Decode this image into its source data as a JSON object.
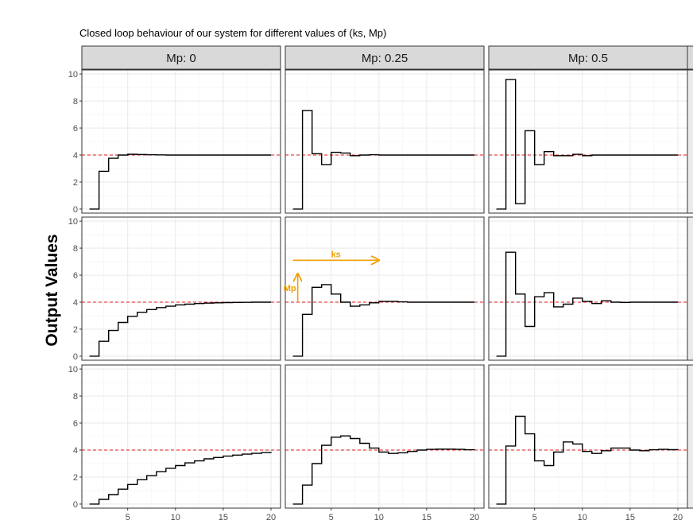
{
  "chart_data": {
    "type": "line",
    "title": "Closed loop behaviour of our system for different values of (ks, Mp)",
    "ylabel": "Output Values",
    "xlabel": "",
    "facet_columns": [
      "Mp: 0",
      "Mp: 0.25",
      "Mp: 0.5"
    ],
    "x_ticks": [
      5,
      10,
      15,
      20
    ],
    "y_ticks": [
      0,
      2,
      4,
      6,
      8,
      10
    ],
    "xlim": [
      0.2,
      21.0
    ],
    "ylim": [
      -0.3,
      10.3
    ],
    "reference_value": 4,
    "reference_color": "#e41a1c",
    "series_color": "#000000",
    "annotation_color": "#f2a100",
    "grid": true,
    "annotations": [
      {
        "text": "ks",
        "row": 1,
        "col": 1,
        "type": "horizontal-arrow",
        "x_from": 1,
        "x_to": 10,
        "y": 7.1
      },
      {
        "text": "Mp",
        "row": 1,
        "col": 1,
        "type": "vertical-arrow",
        "x": 1.5,
        "y_from": 4,
        "y_to": 6.1
      }
    ],
    "panels": [
      {
        "row": 0,
        "col": 0,
        "x": [
          1,
          2,
          3,
          4,
          5,
          6,
          7,
          8,
          9,
          10,
          11,
          12,
          13,
          14,
          15,
          16,
          17,
          18,
          19,
          20
        ],
        "values": [
          0,
          2.8,
          3.76,
          4.0,
          4.06,
          4.04,
          4.02,
          4.01,
          4.0,
          4.0,
          4.0,
          4.0,
          4.0,
          4.0,
          4.0,
          4.0,
          4.0,
          4.0,
          4.0,
          4.0
        ]
      },
      {
        "row": 0,
        "col": 1,
        "x": [
          1,
          2,
          3,
          4,
          5,
          6,
          7,
          8,
          9,
          10,
          11,
          12,
          13,
          14,
          15,
          16,
          17,
          18,
          19,
          20
        ],
        "values": [
          0,
          7.3,
          4.1,
          3.3,
          4.2,
          4.15,
          3.95,
          4.0,
          4.02,
          4.0,
          4.0,
          4.0,
          4.0,
          4.0,
          4.0,
          4.0,
          4.0,
          4.0,
          4.0,
          4.0
        ]
      },
      {
        "row": 0,
        "col": 2,
        "x": [
          1,
          2,
          3,
          4,
          5,
          6,
          7,
          8,
          9,
          10,
          11,
          12,
          13,
          14,
          15,
          16,
          17,
          18,
          19,
          20
        ],
        "values": [
          0,
          9.6,
          0.4,
          5.8,
          3.3,
          4.25,
          3.95,
          3.95,
          4.05,
          3.95,
          4.0,
          4.0,
          4.0,
          4.0,
          4.0,
          4.0,
          4.0,
          4.0,
          4.0,
          4.0
        ]
      },
      {
        "row": 1,
        "col": 0,
        "x": [
          1,
          2,
          3,
          4,
          5,
          6,
          7,
          8,
          9,
          10,
          11,
          12,
          13,
          14,
          15,
          16,
          17,
          18,
          19,
          20
        ],
        "values": [
          0,
          1.1,
          1.9,
          2.5,
          2.95,
          3.25,
          3.45,
          3.6,
          3.7,
          3.8,
          3.85,
          3.9,
          3.93,
          3.95,
          3.97,
          3.98,
          3.99,
          4.0,
          4.0,
          4.0
        ]
      },
      {
        "row": 1,
        "col": 1,
        "x": [
          1,
          2,
          3,
          4,
          5,
          6,
          7,
          8,
          9,
          10,
          11,
          12,
          13,
          14,
          15,
          16,
          17,
          18,
          19,
          20
        ],
        "values": [
          0,
          3.1,
          5.1,
          5.3,
          4.6,
          4.0,
          3.7,
          3.8,
          3.95,
          4.05,
          4.05,
          4.02,
          4.0,
          4.0,
          4.0,
          4.0,
          4.0,
          4.0,
          4.0,
          4.0
        ]
      },
      {
        "row": 1,
        "col": 2,
        "x": [
          1,
          2,
          3,
          4,
          5,
          6,
          7,
          8,
          9,
          10,
          11,
          12,
          13,
          14,
          15,
          16,
          17,
          18,
          19,
          20
        ],
        "values": [
          0,
          7.7,
          4.6,
          2.2,
          4.4,
          4.7,
          3.65,
          3.85,
          4.3,
          4.05,
          3.9,
          4.1,
          4.0,
          3.98,
          4.0,
          4.0,
          4.0,
          4.0,
          4.0,
          4.0
        ]
      },
      {
        "row": 2,
        "col": 0,
        "x": [
          1,
          2,
          3,
          4,
          5,
          6,
          7,
          8,
          9,
          10,
          11,
          12,
          13,
          14,
          15,
          16,
          17,
          18,
          19,
          20
        ],
        "values": [
          0,
          0.35,
          0.7,
          1.1,
          1.45,
          1.8,
          2.1,
          2.4,
          2.65,
          2.85,
          3.05,
          3.2,
          3.35,
          3.45,
          3.55,
          3.63,
          3.7,
          3.76,
          3.81,
          3.86
        ]
      },
      {
        "row": 2,
        "col": 1,
        "x": [
          1,
          2,
          3,
          4,
          5,
          6,
          7,
          8,
          9,
          10,
          11,
          12,
          13,
          14,
          15,
          16,
          17,
          18,
          19,
          20
        ],
        "values": [
          0,
          1.4,
          3.0,
          4.35,
          4.95,
          5.05,
          4.85,
          4.5,
          4.15,
          3.85,
          3.75,
          3.8,
          3.9,
          4.0,
          4.05,
          4.07,
          4.07,
          4.05,
          4.02,
          4.0
        ]
      },
      {
        "row": 2,
        "col": 2,
        "x": [
          1,
          2,
          3,
          4,
          5,
          6,
          7,
          8,
          9,
          10,
          11,
          12,
          13,
          14,
          15,
          16,
          17,
          18,
          19,
          20
        ],
        "values": [
          0,
          4.3,
          6.5,
          5.2,
          3.2,
          2.85,
          3.85,
          4.6,
          4.45,
          3.9,
          3.75,
          3.95,
          4.15,
          4.15,
          4.0,
          3.95,
          4.02,
          4.05,
          4.03,
          4.02
        ]
      }
    ]
  }
}
